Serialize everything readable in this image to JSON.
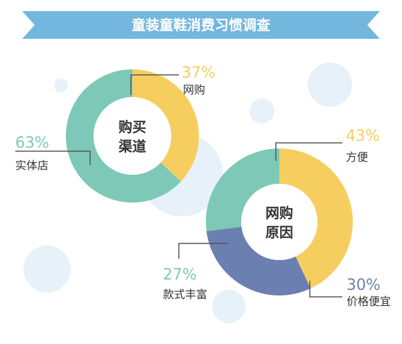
{
  "title": "童装童鞋消费习惯调查",
  "colors": {
    "banner": "#74b7de",
    "yellow": "#f6ce5f",
    "teal": "#7ec8b7",
    "blue": "#6b80b0",
    "bubble": "#e6f1fa",
    "leader": "#555555"
  },
  "chart_data": [
    {
      "type": "pie",
      "title": "购买渠道",
      "center_label": [
        "购买",
        "渠道"
      ],
      "slices": [
        {
          "label": "网购",
          "value": 37,
          "value_text": "37%",
          "color": "#f6ce5f"
        },
        {
          "label": "实体店",
          "value": 63,
          "value_text": "63%",
          "color": "#7ec8b7"
        }
      ]
    },
    {
      "type": "pie",
      "title": "网购原因",
      "center_label": [
        "网购",
        "原因"
      ],
      "slices": [
        {
          "label": "方便",
          "value": 43,
          "value_text": "43%",
          "color": "#f6ce5f"
        },
        {
          "label": "价格便宜",
          "value": 30,
          "value_text": "30%",
          "color": "#6b80b0"
        },
        {
          "label": "款式丰富",
          "value": 27,
          "value_text": "27%",
          "color": "#7ec8b7"
        }
      ]
    }
  ]
}
